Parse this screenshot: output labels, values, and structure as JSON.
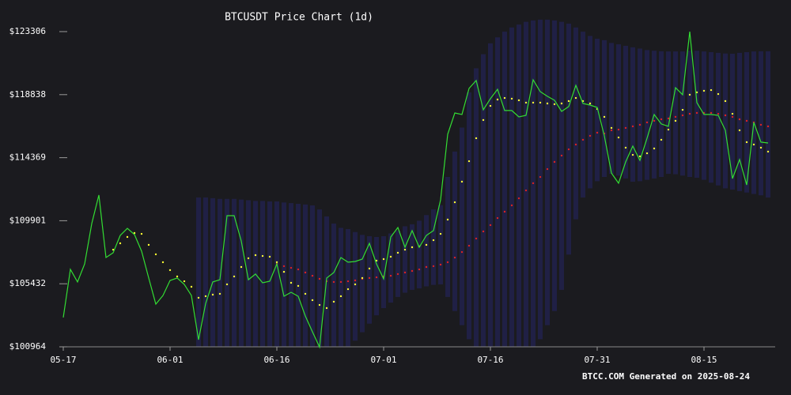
{
  "chart_data": {
    "type": "line",
    "title": "BTCUSDT Price Chart (1d)",
    "annotation": "BTCC.COM Generated on 2025-08-24",
    "x": [
      "05-17",
      "05-18",
      "05-19",
      "05-20",
      "05-21",
      "05-22",
      "05-23",
      "05-24",
      "05-25",
      "05-26",
      "05-27",
      "05-28",
      "05-29",
      "05-30",
      "05-31",
      "06-01",
      "06-02",
      "06-03",
      "06-04",
      "06-05",
      "06-06",
      "06-07",
      "06-08",
      "06-09",
      "06-10",
      "06-11",
      "06-12",
      "06-13",
      "06-14",
      "06-15",
      "06-16",
      "06-17",
      "06-18",
      "06-19",
      "06-20",
      "06-21",
      "06-22",
      "06-23",
      "06-24",
      "06-25",
      "06-26",
      "06-27",
      "06-28",
      "06-29",
      "06-30",
      "07-01",
      "07-02",
      "07-03",
      "07-04",
      "07-05",
      "07-06",
      "07-07",
      "07-08",
      "07-09",
      "07-10",
      "07-11",
      "07-12",
      "07-13",
      "07-14",
      "07-15",
      "07-16",
      "07-17",
      "07-18",
      "07-19",
      "07-20",
      "07-21",
      "07-22",
      "07-23",
      "07-24",
      "07-25",
      "07-26",
      "07-27",
      "07-28",
      "07-29",
      "07-30",
      "07-31",
      "08-01",
      "08-02",
      "08-03",
      "08-04",
      "08-05",
      "08-06",
      "08-07",
      "08-08",
      "08-09",
      "08-10",
      "08-11",
      "08-12",
      "08-13",
      "08-14",
      "08-15",
      "08-16",
      "08-17",
      "08-18",
      "08-19",
      "08-20",
      "08-21",
      "08-22",
      "08-23",
      "08-24"
    ],
    "xticks": [
      "05-17",
      "06-01",
      "06-16",
      "07-01",
      "07-16",
      "07-31",
      "08-15"
    ],
    "ylim": [
      100964,
      123306
    ],
    "yticks": [
      {
        "value": 100964,
        "label": "$100964"
      },
      {
        "value": 105432,
        "label": "$105432"
      },
      {
        "value": 109901,
        "label": "$109901"
      },
      {
        "value": 114369,
        "label": "$114369"
      },
      {
        "value": 118838,
        "label": "$118838"
      },
      {
        "value": 123306,
        "label": "$123306"
      }
    ],
    "band": {
      "color": "#2a2a8c",
      "upper": [
        null,
        null,
        null,
        null,
        null,
        null,
        null,
        null,
        null,
        null,
        null,
        null,
        null,
        null,
        null,
        null,
        null,
        null,
        null,
        111550,
        111550,
        111500,
        111450,
        111450,
        111450,
        111400,
        111350,
        111300,
        111300,
        111270,
        111270,
        111200,
        111150,
        111100,
        111050,
        110990,
        110700,
        110200,
        109700,
        109400,
        109310,
        109100,
        108900,
        108800,
        108750,
        108800,
        109000,
        109200,
        109500,
        109650,
        109900,
        110300,
        110700,
        111000,
        113000,
        114800,
        116500,
        119000,
        120700,
        121700,
        122470,
        122900,
        123300,
        123600,
        123800,
        124000,
        124100,
        124150,
        124150,
        124100,
        124000,
        123870,
        123600,
        123300,
        123000,
        122800,
        122700,
        122500,
        122400,
        122300,
        122190,
        122100,
        122000,
        121950,
        121910,
        121900,
        121900,
        121900,
        121950,
        121950,
        121900,
        121850,
        121800,
        121750,
        121740,
        121800,
        121850,
        121900,
        121910,
        121910
      ],
      "lower": [
        null,
        null,
        null,
        null,
        null,
        null,
        null,
        null,
        null,
        null,
        null,
        null,
        null,
        null,
        null,
        null,
        null,
        null,
        null,
        100630,
        100650,
        100700,
        100750,
        100800,
        100850,
        100880,
        100900,
        100910,
        100910,
        100910,
        100910,
        100850,
        100800,
        100750,
        100700,
        100650,
        100630,
        100700,
        100800,
        100880,
        100910,
        101400,
        102000,
        102600,
        103200,
        103710,
        104100,
        104500,
        104800,
        105000,
        105110,
        105250,
        105350,
        105390,
        104500,
        103500,
        102500,
        101500,
        100800,
        100350,
        100350,
        100350,
        100400,
        100500,
        100600,
        100700,
        100800,
        101500,
        102500,
        103500,
        105000,
        107500,
        110000,
        111550,
        112200,
        112700,
        113000,
        113230,
        113100,
        112900,
        112670,
        112700,
        112800,
        112900,
        113000,
        113230,
        113200,
        113100,
        113000,
        112950,
        112800,
        112600,
        112400,
        112200,
        112110,
        112000,
        111900,
        111800,
        111700,
        111550
      ]
    },
    "series": [
      {
        "color": "#33dd33",
        "style": "line",
        "values": [
          103040,
          106450,
          105560,
          106840,
          109700,
          111720,
          107290,
          107630,
          108860,
          109360,
          108920,
          107740,
          105840,
          103990,
          104600,
          105670,
          105840,
          105390,
          104600,
          101470,
          104040,
          105560,
          105720,
          110260,
          110260,
          108470,
          105720,
          106120,
          105500,
          105610,
          106840,
          104550,
          104830,
          104550,
          103150,
          102030,
          100940,
          105840,
          106230,
          107290,
          106960,
          107010,
          107180,
          108300,
          106840,
          105780,
          108750,
          109420,
          108020,
          109200,
          108020,
          108860,
          109200,
          111380,
          116030,
          117540,
          117430,
          119280,
          119840,
          117760,
          118550,
          119220,
          117710,
          117710,
          117260,
          117370,
          119890,
          119050,
          118720,
          118440,
          117650,
          117990,
          119500,
          118210,
          118100,
          117930,
          115920,
          113280,
          112560,
          114070,
          115190,
          114180,
          115750,
          117430,
          116760,
          116590,
          119330,
          118830,
          123300,
          118270,
          117430,
          117430,
          117370,
          116310,
          112890,
          114240,
          112440,
          116870,
          115470,
          115410
        ]
      },
      {
        "color": "#ffff33",
        "style": "dots",
        "values": [
          null,
          null,
          null,
          null,
          null,
          null,
          null,
          107850,
          108300,
          108750,
          109030,
          108970,
          108190,
          107520,
          106960,
          106400,
          105950,
          105610,
          105220,
          104440,
          104550,
          104660,
          104720,
          105390,
          105950,
          106620,
          107240,
          107460,
          107400,
          107350,
          106960,
          106280,
          105500,
          105280,
          104720,
          104270,
          103930,
          103710,
          104160,
          104550,
          105050,
          105390,
          105840,
          106510,
          107070,
          107180,
          107350,
          107630,
          107850,
          108020,
          108080,
          108190,
          108520,
          108970,
          109980,
          111210,
          112670,
          114120,
          115750,
          117040,
          118040,
          118490,
          118600,
          118550,
          118440,
          118270,
          118270,
          118270,
          118210,
          118160,
          118210,
          118380,
          118600,
          118380,
          118210,
          117820,
          117260,
          116480,
          115800,
          115080,
          114570,
          114460,
          114680,
          115020,
          115640,
          116360,
          116980,
          117760,
          118830,
          119000,
          119110,
          119160,
          118880,
          118380,
          117480,
          116310,
          115470,
          115300,
          115080,
          114800
        ]
      },
      {
        "color": "#dd2222",
        "style": "dots",
        "values": [
          null,
          null,
          null,
          null,
          null,
          null,
          null,
          null,
          null,
          null,
          null,
          null,
          null,
          null,
          null,
          null,
          null,
          null,
          null,
          null,
          null,
          null,
          null,
          null,
          null,
          null,
          null,
          null,
          null,
          null,
          106840,
          106680,
          106560,
          106450,
          106230,
          106000,
          105780,
          105610,
          105560,
          105560,
          105610,
          105670,
          105780,
          105840,
          105890,
          105950,
          106000,
          106120,
          106230,
          106340,
          106450,
          106620,
          106680,
          106790,
          106960,
          107290,
          107680,
          108130,
          108640,
          109140,
          109590,
          110090,
          110540,
          110990,
          111490,
          112050,
          112560,
          113000,
          113560,
          114070,
          114520,
          114960,
          115300,
          115640,
          115920,
          116140,
          116080,
          116310,
          116360,
          116480,
          116590,
          116700,
          116870,
          116980,
          117090,
          117150,
          117260,
          117370,
          117480,
          117540,
          117540,
          117540,
          117480,
          117370,
          117260,
          117090,
          116980,
          116870,
          116700,
          116590
        ]
      }
    ]
  }
}
